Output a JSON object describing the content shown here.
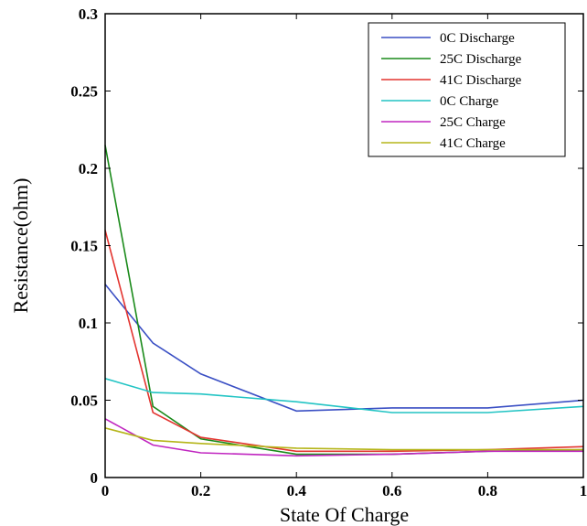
{
  "chart_data": {
    "type": "line",
    "title": "",
    "xlabel": "State Of Charge",
    "ylabel": "Resistance(ohm)",
    "xlim": [
      0,
      1
    ],
    "ylim": [
      0,
      0.3
    ],
    "x_ticks": [
      0,
      0.2,
      0.4,
      0.6,
      0.8,
      1
    ],
    "x_tick_labels": [
      "0",
      "0.2",
      "0.4",
      "0.6",
      "0.8",
      "1"
    ],
    "y_ticks": [
      0,
      0.05,
      0.1,
      0.15,
      0.2,
      0.25,
      0.3
    ],
    "y_tick_labels": [
      "0",
      "0.05",
      "0.1",
      "0.15",
      "0.2",
      "0.25",
      "0.3"
    ],
    "grid": false,
    "legend_position": "top-right",
    "x": [
      0,
      0.1,
      0.2,
      0.4,
      0.6,
      0.8,
      1.0
    ],
    "series": [
      {
        "name": "0C Discharge",
        "color": "#3a4fc4",
        "values": [
          0.125,
          0.087,
          0.067,
          0.043,
          0.045,
          0.045,
          0.05
        ]
      },
      {
        "name": "25C Discharge",
        "color": "#1a8a1a",
        "values": [
          0.215,
          0.046,
          0.025,
          0.015,
          0.015,
          0.017,
          0.018
        ]
      },
      {
        "name": "41C Discharge",
        "color": "#e3342f",
        "values": [
          0.16,
          0.042,
          0.026,
          0.017,
          0.017,
          0.018,
          0.02
        ]
      },
      {
        "name": "0C Charge",
        "color": "#22c4c4",
        "values": [
          0.064,
          0.055,
          0.054,
          0.049,
          0.042,
          0.042,
          0.046
        ]
      },
      {
        "name": "25C Charge",
        "color": "#c026c0",
        "values": [
          0.038,
          0.021,
          0.016,
          0.014,
          0.015,
          0.017,
          0.017
        ]
      },
      {
        "name": "41C Charge",
        "color": "#b5b51a",
        "values": [
          0.032,
          0.024,
          0.022,
          0.019,
          0.018,
          0.018,
          0.018
        ]
      }
    ]
  }
}
